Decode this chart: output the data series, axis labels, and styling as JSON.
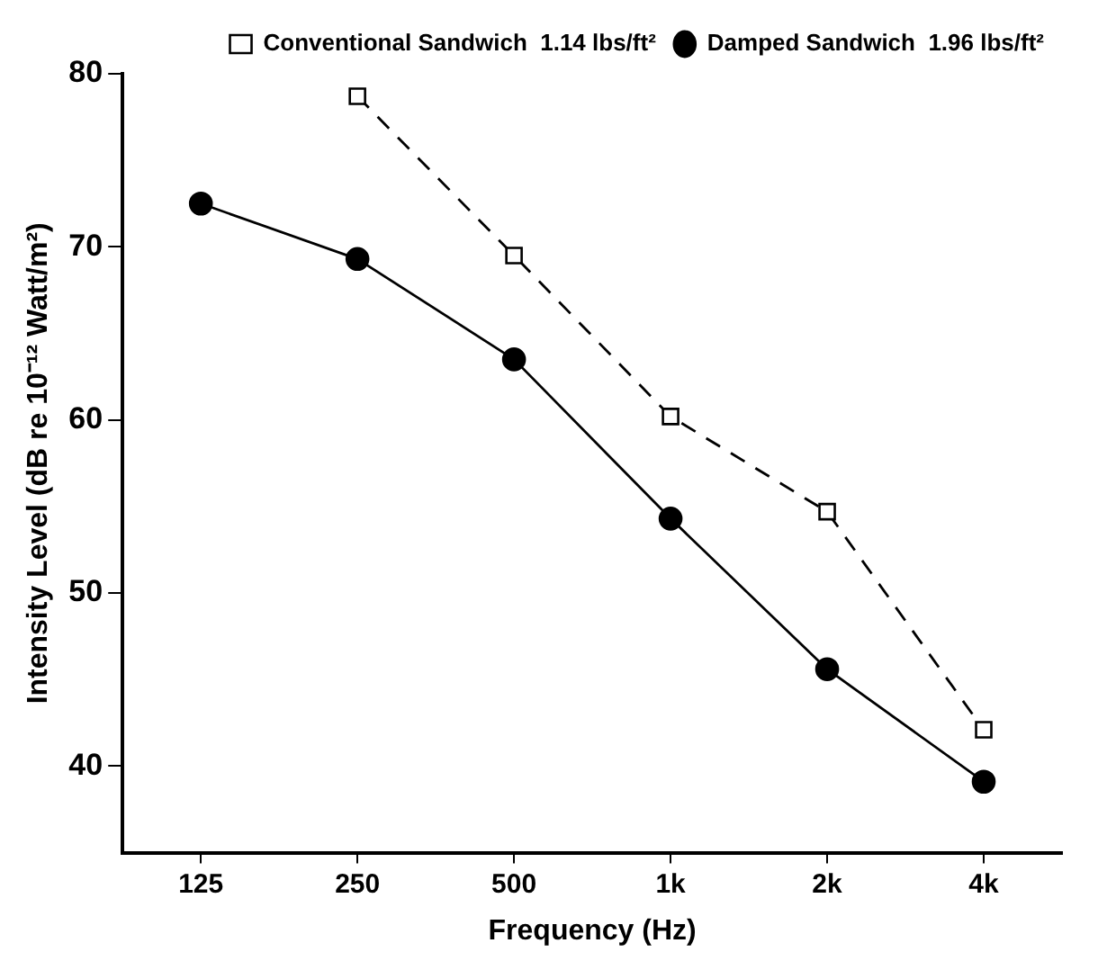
{
  "chart_data": {
    "type": "line",
    "xlabel": "Frequency (Hz)",
    "ylabel": "Intensity Level (dB re 10⁻¹² Watt/m²)",
    "categories": [
      "125",
      "250",
      "500",
      "1k",
      "2k",
      "4k"
    ],
    "series": [
      {
        "name": "Conventional Sandwich  1.14 lbs/ft²",
        "color": "#000000",
        "values": [
          null,
          78.7,
          69.5,
          60.2,
          54.7,
          42.1
        ],
        "marker": "square",
        "line_style": "dashed"
      },
      {
        "name": "Damped Sandwich  1.96 lbs/ft²",
        "color": "#000000",
        "values": [
          72.5,
          69.3,
          63.5,
          54.3,
          45.6,
          39.1
        ],
        "marker": "circle",
        "line_style": "solid"
      }
    ],
    "ylim": [
      35,
      80
    ],
    "yticks": [
      40,
      50,
      60,
      70,
      80
    ],
    "grid": false,
    "legend": "top right"
  }
}
